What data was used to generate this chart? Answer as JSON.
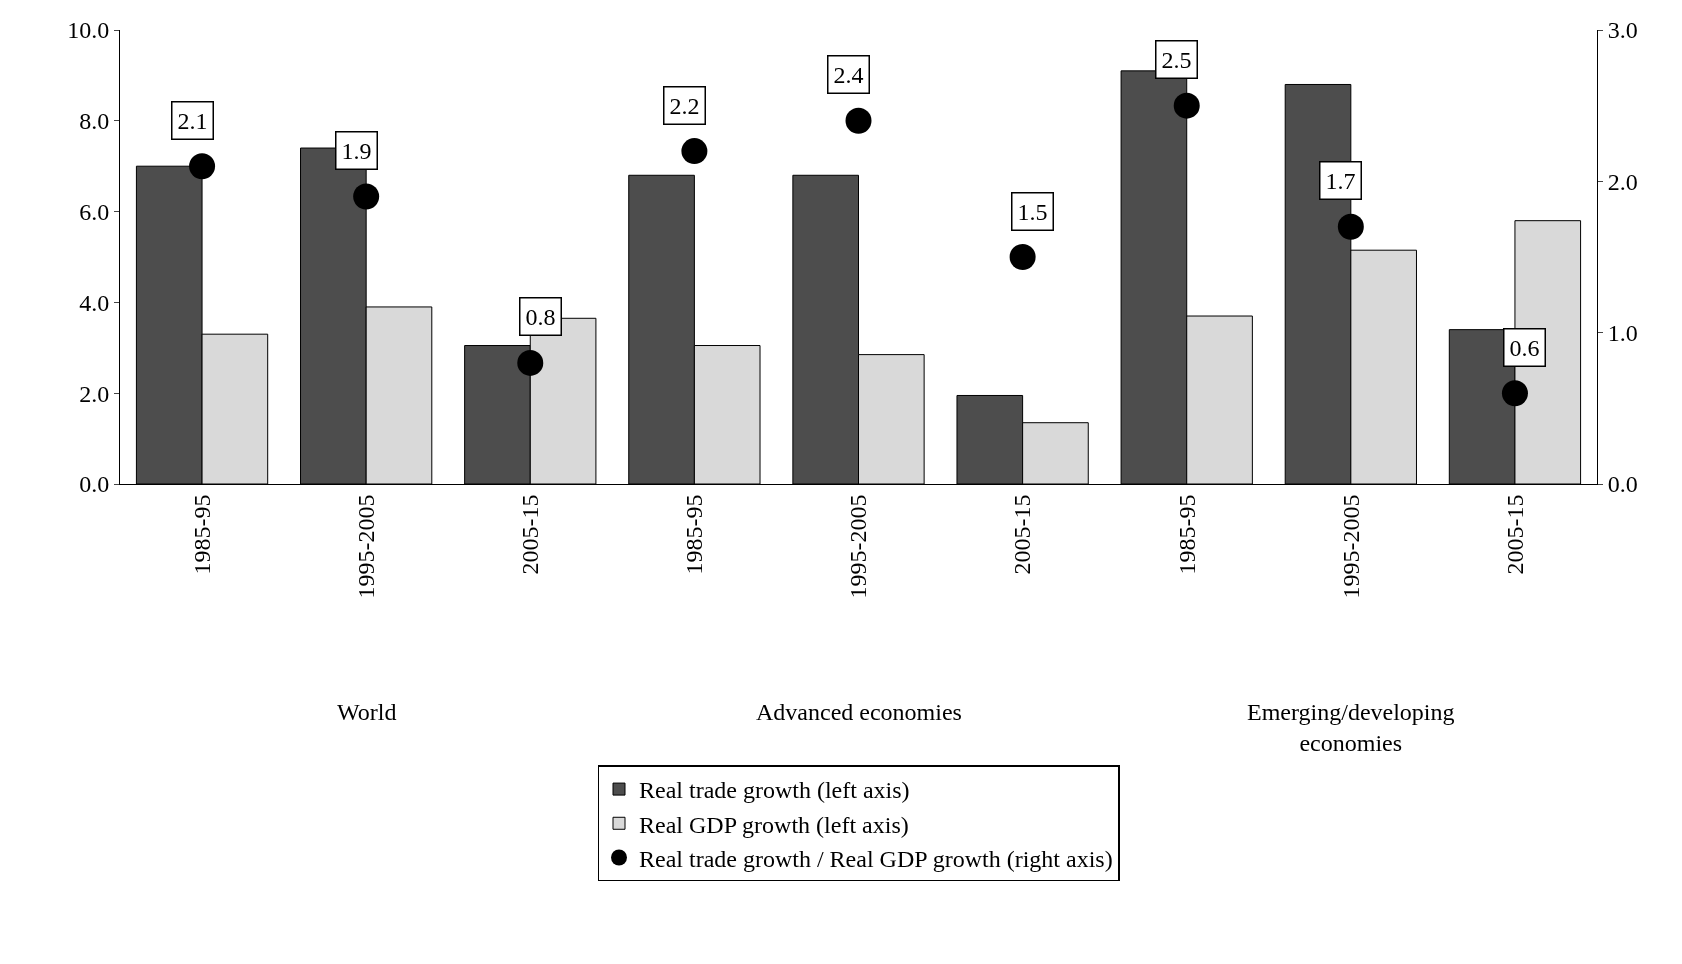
{
  "chart_data": {
    "type": "bar",
    "categories": [
      "1985-95",
      "1995-2005",
      "2005-15",
      "1985-95",
      "1995-2005",
      "2005-15",
      "1985-95",
      "1995-2005",
      "2005-15"
    ],
    "series": [
      {
        "name": "Real trade growth (left axis)",
        "color": "#4d4d4d",
        "values": [
          7.0,
          7.4,
          3.05,
          6.8,
          6.8,
          1.95,
          9.1,
          8.8,
          3.4
        ]
      },
      {
        "name": "Real GDP growth (left axis)",
        "color": "#d9d9d9",
        "values": [
          3.3,
          3.9,
          3.65,
          3.05,
          2.85,
          1.35,
          3.7,
          5.15,
          5.8
        ]
      },
      {
        "name": "Real trade growth / Real GDP growth (right axis)",
        "type": "scatter",
        "axis": "y2",
        "color": "#000000",
        "values": [
          2.1,
          1.9,
          0.8,
          2.2,
          2.4,
          1.5,
          2.5,
          1.7,
          0.6
        ],
        "value_labels": [
          "2.1",
          "1.9",
          "0.8",
          "2.2",
          "2.4",
          "1.5",
          "2.5",
          "1.7",
          "0.6"
        ]
      }
    ],
    "annotations": [
      "World",
      "Advanced economies",
      "Emerging/developing\neconomies"
    ],
    "ylim": [
      0,
      10
    ],
    "yticks": [
      {
        "value": 0,
        "label": "0.0"
      },
      {
        "value": 2,
        "label": "2.0"
      },
      {
        "value": 4,
        "label": "4.0"
      },
      {
        "value": 6,
        "label": "6.0"
      },
      {
        "value": 8,
        "label": "8.0"
      },
      {
        "value": 10,
        "label": "10.0"
      }
    ],
    "y2lim": [
      0,
      3
    ],
    "y2ticks": [
      {
        "value": 0,
        "label": "0.0"
      },
      {
        "value": 1,
        "label": "1.0"
      },
      {
        "value": 2,
        "label": "2.0"
      },
      {
        "value": 3,
        "label": "3.0"
      }
    ],
    "legend": "bottom"
  }
}
